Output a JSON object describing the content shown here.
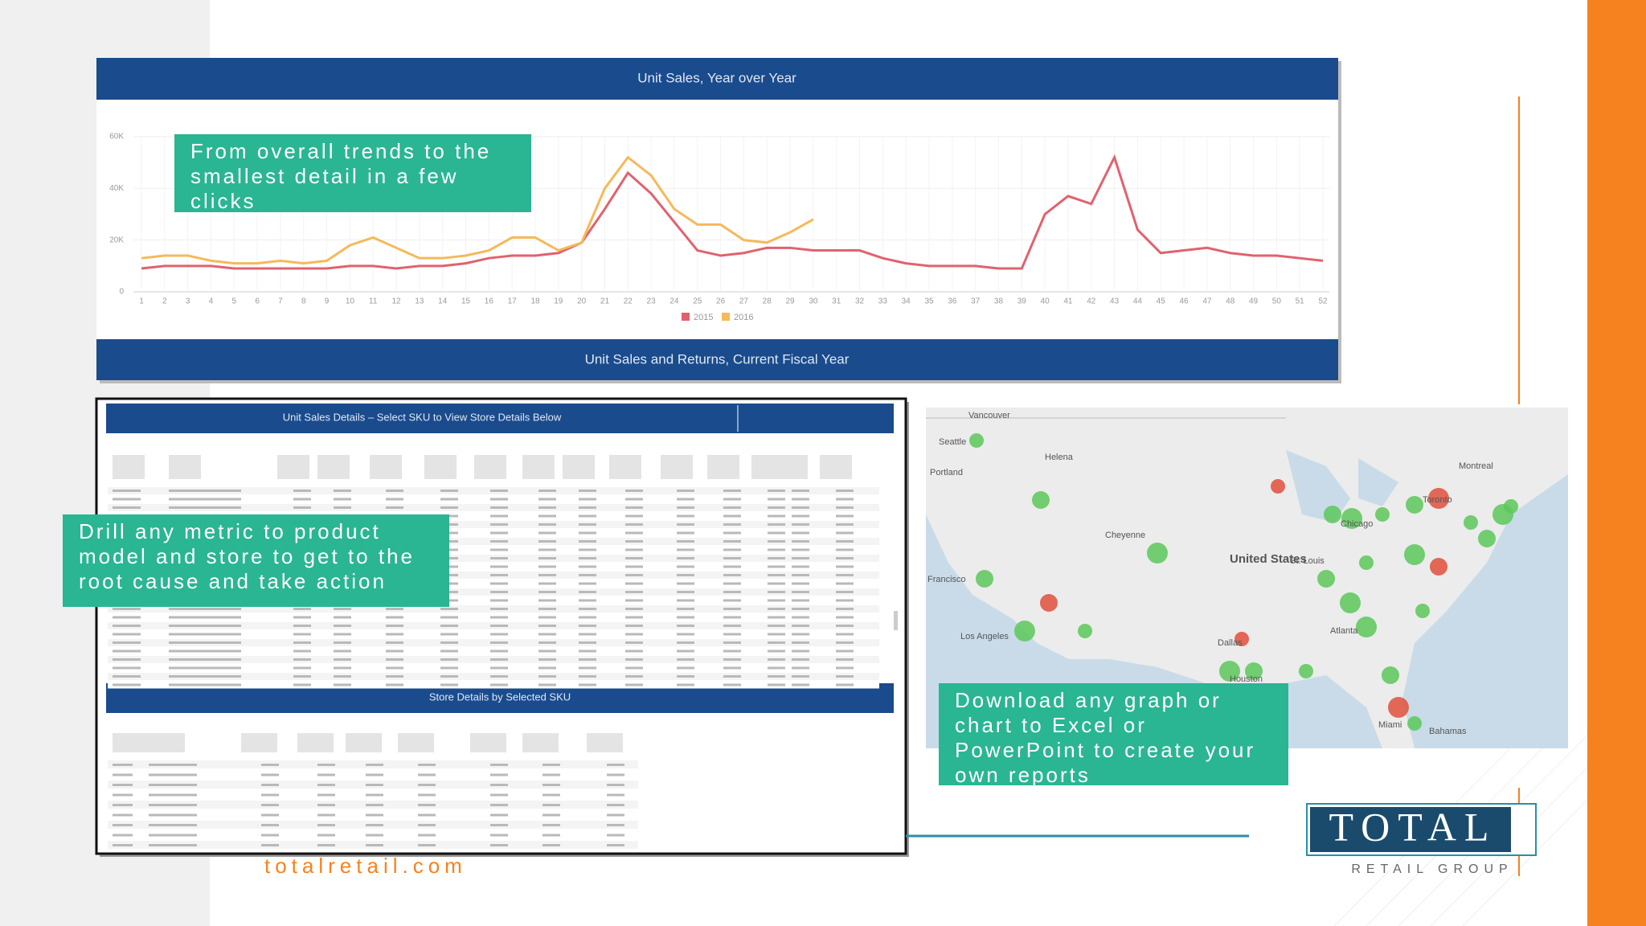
{
  "slide": {
    "callouts": [
      "From overall trends to the smallest detail in a few clicks",
      "Drill any metric to product model and store to get to the root cause and take action",
      "Download any graph or chart to Excel or PowerPoint to create your own reports"
    ],
    "footer": "totalretail.com",
    "logo": {
      "name": "TOTAL",
      "tagline": "RETAIL GROUP"
    }
  },
  "chart_data": {
    "type": "line",
    "title": "Unit Sales, Year over Year",
    "x": [
      1,
      2,
      3,
      4,
      5,
      6,
      7,
      8,
      9,
      10,
      11,
      12,
      13,
      14,
      15,
      16,
      17,
      18,
      19,
      20,
      21,
      22,
      23,
      24,
      25,
      26,
      27,
      28,
      29,
      30,
      31,
      32,
      33,
      34,
      35,
      36,
      37,
      38,
      39,
      40,
      41,
      42,
      43,
      44,
      45,
      46,
      47,
      48,
      49,
      50,
      51,
      52
    ],
    "xlim": [
      1,
      52
    ],
    "xticks": [
      1,
      2,
      3,
      4,
      5,
      6,
      7,
      8,
      9,
      10,
      11,
      12,
      13,
      14,
      15,
      16,
      17,
      18,
      19,
      20,
      21,
      22,
      23,
      24,
      25,
      26,
      27,
      28,
      29,
      30,
      31,
      32,
      33,
      34,
      35,
      36,
      37,
      38,
      39,
      40,
      41,
      42,
      43,
      44,
      45,
      46,
      47,
      48,
      49,
      50,
      51,
      52
    ],
    "ylim": [
      0,
      60000
    ],
    "yticks": [
      0,
      {
        "value": 20000,
        "label": "20K"
      },
      {
        "value": 40000,
        "label": "40K"
      },
      {
        "value": 60000,
        "label": "60K"
      }
    ],
    "grid": true,
    "series": [
      {
        "name": "2015",
        "color": "#e0626e",
        "values": [
          9000,
          10000,
          10000,
          10000,
          9000,
          9000,
          9000,
          9000,
          9000,
          10000,
          10000,
          9000,
          10000,
          10000,
          11000,
          13000,
          14000,
          14000,
          15000,
          19000,
          32000,
          46000,
          38000,
          27000,
          16000,
          14000,
          15000,
          17000,
          17000,
          16000,
          16000,
          16000,
          13000,
          11000,
          10000,
          10000,
          10000,
          9000,
          9000,
          30000,
          37000,
          34000,
          52000,
          24000,
          15000,
          16000,
          17000,
          15000,
          14000,
          14000,
          13000,
          12000
        ]
      },
      {
        "name": "2016",
        "color": "#f5b95a",
        "values": [
          13000,
          14000,
          14000,
          12000,
          11000,
          11000,
          12000,
          11000,
          12000,
          18000,
          21000,
          17000,
          13000,
          13000,
          14000,
          16000,
          21000,
          21000,
          16000,
          19000,
          40000,
          52000,
          45000,
          32000,
          26000,
          26000,
          20000,
          19000,
          23000,
          28000,
          null,
          null,
          null,
          null,
          null,
          null,
          null,
          null,
          null,
          null,
          null,
          null,
          null,
          null,
          null,
          null,
          null,
          null,
          null,
          null,
          null,
          null
        ]
      }
    ]
  },
  "dashboard": {
    "bottom_bar_title": "Unit Sales and Returns, Current Fiscal Year",
    "table_title": "Unit Sales Details – Select SKU to View Store Details Below",
    "store_table_title": "Store Details by Selected SKU"
  },
  "map": {
    "labels": [
      "Vancouver",
      "Seattle",
      "Portland",
      "Helena",
      "Cheyenne",
      "United States",
      "St. Louis",
      "Chicago",
      "Toronto",
      "Montreal",
      "Francisco",
      "Los Angeles",
      "Dallas",
      "Houston",
      "Atlanta",
      "Miami",
      "Bahamas"
    ]
  }
}
